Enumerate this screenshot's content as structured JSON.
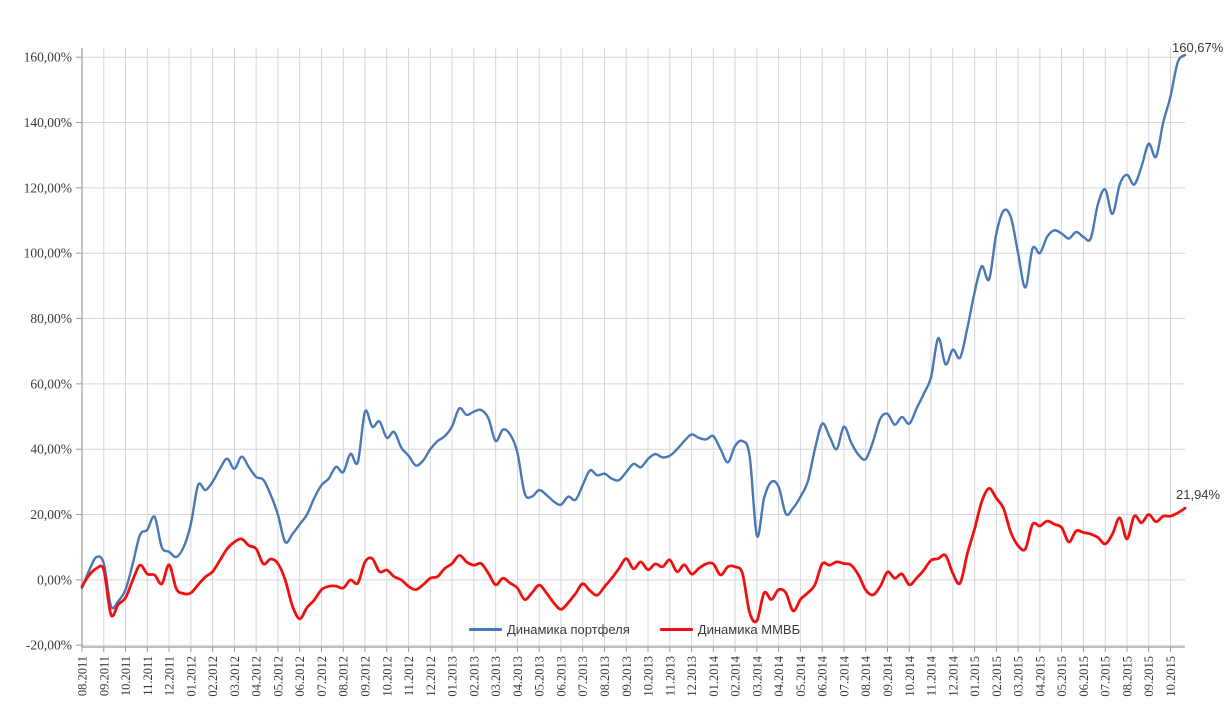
{
  "chart_data": {
    "type": "line",
    "title": "",
    "grid": true,
    "legend_position": "bottom-center",
    "colors": {
      "grid": "#d6d6d6",
      "axis": "#9c9c9c",
      "text": "#3b3b3b",
      "background": "#ffffff"
    },
    "y_axis": {
      "min": -20,
      "max": 160,
      "step": 20,
      "tick_labels": [
        "160,00%",
        "140,00%",
        "120,00%",
        "100,00%",
        "80,00%",
        "60,00%",
        "40,00%",
        "20,00%",
        "0,00%",
        "-20,00%"
      ]
    },
    "x_axis": {
      "labels": [
        "08.2011",
        "09.2011",
        "10.2011",
        "11.2011",
        "12.2011",
        "01.2012",
        "02.2012",
        "03.2012",
        "04.2012",
        "05.2012",
        "06.2012",
        "07.2012",
        "08.2012",
        "09.2012",
        "10.2012",
        "11.2012",
        "12.2012",
        "01.2013",
        "02.2013",
        "03.2013",
        "04.2013",
        "05.2013",
        "06.2013",
        "07.2013",
        "08.2013",
        "09.2013",
        "10.2013",
        "11.2013",
        "12.2013",
        "01.2014",
        "02.2014",
        "03.2014",
        "04.2014",
        "05.2014",
        "06.2014",
        "07.2014",
        "08.2014",
        "09.2014",
        "10.2014",
        "11.2014",
        "12.2014",
        "01.2015",
        "02.2015",
        "03.2015",
        "04.2015",
        "05.2015",
        "06.2015",
        "07.2015",
        "08.2015",
        "09.2015",
        "10.2015"
      ]
    },
    "points_per_month": 3,
    "series": [
      {
        "name": "Динамика портфеля",
        "color": "#4878b6",
        "stroke_width": 2.4,
        "end_label": "160,67%",
        "end_value": 160.67,
        "values": [
          -2.5,
          3,
          7,
          5,
          -8,
          -6.5,
          -3,
          5,
          13.8,
          15.3,
          19.3,
          10,
          8.6,
          7,
          10,
          17,
          29,
          27.5,
          30,
          34,
          37.1,
          34,
          37.7,
          34.5,
          31.5,
          30.6,
          26,
          20,
          11.6,
          14,
          17,
          20,
          25,
          29,
          31,
          34.6,
          33,
          38.6,
          36,
          51.5,
          46.9,
          48.5,
          43.5,
          45.3,
          40.5,
          38,
          35,
          36.5,
          40,
          42.5,
          44,
          47,
          52.5,
          50.5,
          51.5,
          52,
          49.5,
          42.5,
          46,
          44.5,
          39,
          26.5,
          25.5,
          27.5,
          26,
          24,
          23,
          25.5,
          24.5,
          29,
          33.5,
          32,
          32.5,
          31,
          30.5,
          33,
          35.5,
          34.5,
          37,
          38.5,
          37.5,
          38,
          40,
          42.5,
          44.5,
          43.5,
          43,
          44,
          40,
          36,
          41,
          42.5,
          38,
          13.5,
          25,
          30,
          28.5,
          20.2,
          22,
          25.4,
          30,
          40,
          47.8,
          44,
          40,
          46.9,
          42,
          38.3,
          37,
          42.3,
          49.3,
          50.8,
          47.5,
          49.9,
          47.8,
          52.4,
          57,
          62,
          74,
          66,
          70.5,
          68,
          77,
          88,
          96,
          92,
          106,
          113,
          111,
          100,
          89.5,
          101.5,
          100,
          105,
          107,
          106,
          104.5,
          106.5,
          105,
          104.5,
          115,
          119.5,
          112,
          121,
          124,
          121,
          126.5,
          133.5,
          129.5,
          140,
          148,
          158.5,
          160.67
        ]
      },
      {
        "name": "Динамика ММВБ",
        "color": "#ef1010",
        "stroke_width": 2.8,
        "end_label": "21,94%",
        "end_value": 21.94,
        "values": [
          -2,
          1.5,
          3.5,
          3,
          -10.7,
          -7.5,
          -5.5,
          0,
          4.5,
          1.8,
          1.5,
          -1.2,
          4.6,
          -2.7,
          -4.2,
          -4,
          -1.5,
          0.9,
          2.5,
          6,
          9.5,
          11.6,
          12.5,
          10.5,
          9.5,
          4.9,
          6.4,
          5,
          0,
          -8,
          -11.9,
          -8.5,
          -6.2,
          -3,
          -2,
          -1.9,
          -2.5,
          0,
          -1,
          5.5,
          6.5,
          2.5,
          3,
          1,
          0,
          -2,
          -3,
          -1.5,
          0.5,
          1,
          3.5,
          5,
          7.5,
          5.5,
          4.5,
          5,
          2,
          -1.5,
          0.5,
          -1,
          -2.5,
          -6,
          -4,
          -1.6,
          -4,
          -7,
          -9,
          -7,
          -4.2,
          -1.2,
          -3.3,
          -4.7,
          -2.1,
          0.5,
          3.5,
          6.5,
          3.4,
          5.5,
          3.1,
          4.9,
          4,
          6.1,
          2.5,
          4.6,
          1.8,
          3.5,
          4.9,
          4.9,
          1.5,
          4,
          4,
          2,
          -10,
          -12.5,
          -4,
          -6,
          -3,
          -4,
          -9.5,
          -6,
          -4,
          -1.5,
          4.9,
          4.5,
          5.5,
          5,
          4.5,
          1.5,
          -3.1,
          -4.6,
          -2,
          2.4,
          0.5,
          1.8,
          -1.5,
          0.5,
          3,
          6,
          6.5,
          7.5,
          2,
          -1,
          8,
          15.6,
          24,
          28,
          25,
          21.8,
          14.5,
          10.5,
          9.5,
          17,
          16.5,
          18,
          17,
          16,
          11.6,
          15,
          14.5,
          14,
          13,
          11,
          14,
          19,
          12.5,
          19.5,
          17.5,
          20,
          17.8,
          19.5,
          19.5,
          20.5,
          21.94
        ]
      }
    ]
  }
}
